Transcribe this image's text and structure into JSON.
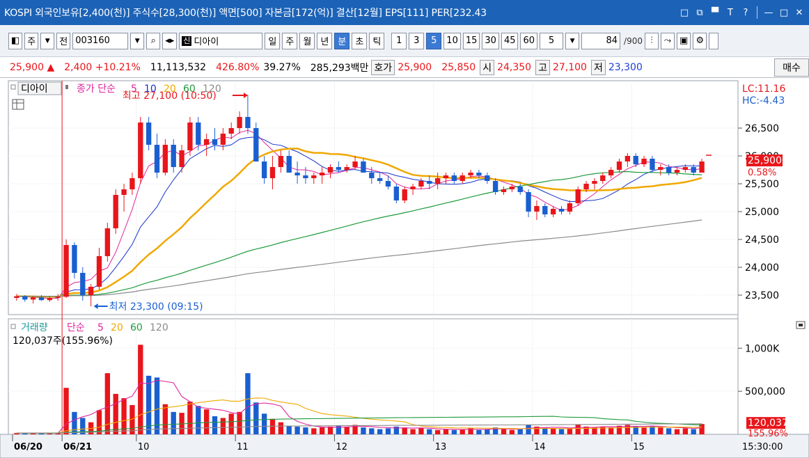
{
  "window": {
    "title": "KOSPI 외국인보유[2,400(천)] 주식수[28,300(천)] 액면[500] 자본금[172(억)] 결산[12월] EPS[111] PER[232.43",
    "buttons": [
      "restore-icon",
      "popout-icon",
      "pin-icon",
      "text-icon",
      "help-icon",
      "minimize-icon",
      "maximize-icon",
      "close-icon"
    ],
    "button_glyphs": {
      "restore": "□",
      "popout": "⧉",
      "pin": "▀",
      "text": "T",
      "help": "?",
      "minimize": "—",
      "maximize": "□",
      "close": "✕"
    }
  },
  "toolbar": {
    "mode_label": "주",
    "mode_label2": "전",
    "code": "003160",
    "stock_badge": "신",
    "stock_name": "디아이",
    "periods": [
      "일",
      "주",
      "월",
      "년",
      "분",
      "초",
      "틱"
    ],
    "active_period": "분",
    "intervals": [
      "1",
      "3",
      "5",
      "10",
      "15",
      "30",
      "45",
      "60"
    ],
    "active_interval": "5",
    "interval_select": "5",
    "count": "84",
    "count_total": "/900"
  },
  "info": {
    "price": "25,900",
    "price_arrow": "▲",
    "change": "2,400",
    "change_pct": "+10.21%",
    "volume": "11,113,532",
    "vol_ratio": "426.80%",
    "turnover": "39.27%",
    "amount": "285,293백만",
    "quote_label": "호가",
    "ask": "25,900",
    "bid": "25,850",
    "open_label": "시",
    "open": "24,350",
    "high_label": "고",
    "high": "27,100",
    "low_label": "저",
    "low": "23,300",
    "buy_label": "매수"
  },
  "chart_data": [
    {
      "type": "candlestick",
      "panel": "price",
      "legend_name": "디아이",
      "legend_series": "종가 단순",
      "ma_periods": [
        "5",
        "10",
        "20",
        "60",
        "120"
      ],
      "ma_colors": [
        "#e0249c",
        "#1433c9",
        "#f0a800",
        "#1f9a3c",
        "#8a8a8a"
      ],
      "y_ticks": [
        "26,500",
        "26,000",
        "25,500",
        "25,000",
        "24,500",
        "24,000",
        "23,500"
      ],
      "y_tick_values": [
        26500,
        26000,
        25500,
        25000,
        24500,
        24000,
        23500
      ],
      "ylim": [
        23150,
        27350
      ],
      "lc_label": "LC:11.16",
      "hc_label": "HC:-4.43",
      "current_price": "25,900",
      "current_value": 25900,
      "current_pct": "0.58%",
      "high_note": "최고 27,100 (10:50)",
      "high_value": 27100,
      "low_note": "최저 23,300 (09:15)",
      "low_value": 23300,
      "candles": [
        [
          23450,
          23520,
          23400,
          23480
        ],
        [
          23480,
          23500,
          23380,
          23420
        ],
        [
          23420,
          23480,
          23350,
          23460
        ],
        [
          23460,
          23500,
          23400,
          23410
        ],
        [
          23410,
          23480,
          23380,
          23450
        ],
        [
          23450,
          23520,
          23400,
          23470
        ],
        [
          23470,
          24500,
          23450,
          24400
        ],
        [
          24400,
          24450,
          23800,
          23900
        ],
        [
          23900,
          24000,
          23400,
          23500
        ],
        [
          23500,
          23700,
          23300,
          23650
        ],
        [
          23650,
          24350,
          23600,
          24200
        ],
        [
          24200,
          24800,
          24100,
          24700
        ],
        [
          24700,
          25400,
          24600,
          25300
        ],
        [
          25300,
          25500,
          25000,
          25400
        ],
        [
          25400,
          25700,
          25300,
          25600
        ],
        [
          25600,
          26700,
          25500,
          26600
        ],
        [
          26600,
          26700,
          26100,
          26200
        ],
        [
          26200,
          26400,
          25600,
          25700
        ],
        [
          25700,
          26300,
          25650,
          26200
        ],
        [
          26200,
          26300,
          25700,
          25800
        ],
        [
          25800,
          26200,
          25700,
          26100
        ],
        [
          26100,
          26700,
          26000,
          26600
        ],
        [
          26600,
          26700,
          26100,
          26200
        ],
        [
          26200,
          26400,
          26000,
          26300
        ],
        [
          26300,
          26500,
          26100,
          26200
        ],
        [
          26200,
          26500,
          26100,
          26400
        ],
        [
          26400,
          26600,
          26300,
          26500
        ],
        [
          26500,
          26800,
          26400,
          26700
        ],
        [
          26700,
          27100,
          26400,
          26500
        ],
        [
          26500,
          26600,
          25900,
          25900
        ],
        [
          25900,
          26000,
          25500,
          25600
        ],
        [
          25600,
          26000,
          25400,
          25800
        ],
        [
          25800,
          26100,
          25700,
          26000
        ],
        [
          26000,
          26100,
          25700,
          25700
        ],
        [
          25700,
          25900,
          25500,
          25650
        ],
        [
          25650,
          25800,
          25500,
          25600
        ],
        [
          25600,
          25700,
          25500,
          25650
        ],
        [
          25650,
          25800,
          25500,
          25700
        ],
        [
          25700,
          25850,
          25600,
          25800
        ],
        [
          25800,
          25900,
          25700,
          25750
        ],
        [
          25750,
          25850,
          25700,
          25800
        ],
        [
          25800,
          26000,
          25750,
          25900
        ],
        [
          25900,
          25950,
          25700,
          25700
        ],
        [
          25700,
          25800,
          25500,
          25600
        ],
        [
          25600,
          25700,
          25500,
          25550
        ],
        [
          25550,
          25650,
          25400,
          25450
        ],
        [
          25450,
          25500,
          25150,
          25200
        ],
        [
          25200,
          25450,
          25150,
          25400
        ],
        [
          25400,
          25500,
          25300,
          25450
        ],
        [
          25450,
          25600,
          25400,
          25550
        ],
        [
          25550,
          25650,
          25400,
          25500
        ],
        [
          25500,
          25700,
          25400,
          25600
        ],
        [
          25600,
          25700,
          25500,
          25650
        ],
        [
          25650,
          25700,
          25500,
          25550
        ],
        [
          25550,
          25700,
          25500,
          25650
        ],
        [
          25650,
          25750,
          25600,
          25700
        ],
        [
          25700,
          25750,
          25600,
          25650
        ],
        [
          25650,
          25700,
          25500,
          25550
        ],
        [
          25550,
          25600,
          25300,
          25350
        ],
        [
          25350,
          25450,
          25300,
          25400
        ],
        [
          25400,
          25500,
          25350,
          25450
        ],
        [
          25450,
          25500,
          25300,
          25350
        ],
        [
          25350,
          25400,
          24900,
          25000
        ],
        [
          25000,
          25200,
          24850,
          25100
        ],
        [
          25100,
          25150,
          24900,
          24950
        ],
        [
          24950,
          25100,
          24900,
          25050
        ],
        [
          25050,
          25100,
          24950,
          25000
        ],
        [
          25000,
          25200,
          24950,
          25150
        ],
        [
          25150,
          25450,
          25100,
          25400
        ],
        [
          25400,
          25550,
          25350,
          25500
        ],
        [
          25500,
          25600,
          25400,
          25550
        ],
        [
          25550,
          25700,
          25500,
          25650
        ],
        [
          25650,
          25800,
          25600,
          25750
        ],
        [
          25750,
          25950,
          25700,
          25900
        ],
        [
          25900,
          26050,
          25800,
          26000
        ],
        [
          26000,
          26050,
          25800,
          25850
        ],
        [
          25850,
          26000,
          25800,
          25950
        ],
        [
          25950,
          26000,
          25700,
          25750
        ],
        [
          25750,
          25850,
          25650,
          25800
        ],
        [
          25800,
          25850,
          25650,
          25700
        ],
        [
          25700,
          25800,
          25650,
          25750
        ],
        [
          25750,
          25850,
          25700,
          25800
        ],
        [
          25800,
          25850,
          25650,
          25700
        ],
        [
          25700,
          25950,
          25700,
          25900
        ]
      ]
    },
    {
      "type": "bar",
      "panel": "volume",
      "legend_name": "거래량",
      "legend_series": "단순",
      "ma_periods": [
        "5",
        "20",
        "60",
        "120"
      ],
      "ma_colors": [
        "#e0249c",
        "#f0a800",
        "#1f9a3c",
        "#8a8a8a"
      ],
      "current_label": "120,037주(155.96%)",
      "y_ticks": [
        "1,000K",
        "500,000"
      ],
      "y_tick_values": [
        1000000,
        500000
      ],
      "ylim": [
        0,
        1180000
      ],
      "current_value_tag": "120,037",
      "current_volume": 120037,
      "current_pct_tag": "155.96%",
      "volumes": [
        15000,
        12000,
        18000,
        10000,
        14000,
        16000,
        540000,
        260000,
        190000,
        140000,
        280000,
        710000,
        470000,
        420000,
        340000,
        1040000,
        680000,
        660000,
        350000,
        260000,
        250000,
        380000,
        330000,
        290000,
        210000,
        190000,
        240000,
        260000,
        710000,
        370000,
        240000,
        180000,
        140000,
        100000,
        90000,
        80000,
        70000,
        80000,
        90000,
        100000,
        90000,
        110000,
        80000,
        70000,
        60000,
        70000,
        90000,
        80000,
        60000,
        70000,
        60000,
        50000,
        60000,
        50000,
        60000,
        70000,
        50000,
        60000,
        80000,
        60000,
        50000,
        60000,
        110000,
        90000,
        80000,
        70000,
        60000,
        70000,
        110000,
        90000,
        80000,
        90000,
        80000,
        100000,
        110000,
        90000,
        80000,
        100000,
        80000,
        70000,
        60000,
        70000,
        60000,
        120037
      ]
    }
  ],
  "x_axis": {
    "labels": [
      "06/20",
      "06/21",
      "10",
      "11",
      "12",
      "13",
      "14",
      "15"
    ],
    "label_indices": [
      0,
      6,
      15,
      27,
      39,
      51,
      63,
      75
    ],
    "time_label": "15:30:00"
  }
}
